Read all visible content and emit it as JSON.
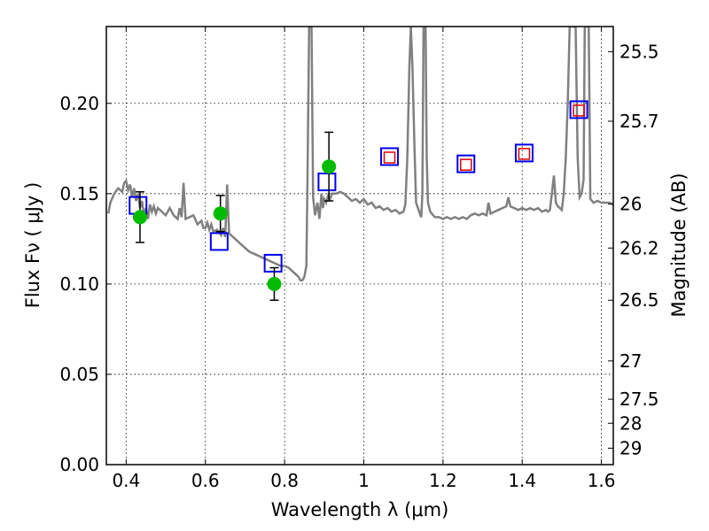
{
  "chart_data": {
    "type": "scatter",
    "xlabel": "Wavelength  λ (μm)",
    "ylabel": "Flux  Fν  ( μJy )",
    "y2label": "Magnitude (AB)",
    "xlim": [
      0.35,
      1.63
    ],
    "ylim": [
      0.0,
      0.2425
    ],
    "xticks": [
      0.4,
      0.6,
      0.8,
      1.0,
      1.2,
      1.4,
      1.6
    ],
    "xtick_labels": [
      "0.4",
      "0.6",
      "0.8",
      "1",
      "1.2",
      "1.4",
      "1.6"
    ],
    "yticks": [
      0.0,
      0.05,
      0.1,
      0.15,
      0.2
    ],
    "ytick_labels": [
      "0.00",
      "0.05",
      "0.10",
      "0.15",
      "0.20"
    ],
    "mag_ticks": [
      {
        "label": "25.5",
        "flux": 0.2286
      },
      {
        "label": "25.7",
        "flux": 0.1901
      },
      {
        "label": "26",
        "flux": 0.1442
      },
      {
        "label": "26.2",
        "flux": 0.1199
      },
      {
        "label": "26.5",
        "flux": 0.091
      },
      {
        "label": "27",
        "flux": 0.0574
      },
      {
        "label": "27.5",
        "flux": 0.0362
      },
      {
        "label": "28",
        "flux": 0.0229
      },
      {
        "label": "29",
        "flux": 0.0091
      }
    ],
    "grid": true,
    "colors": {
      "spectrum": "#808080",
      "observed": "#00bb00",
      "model_box": "#0000ee",
      "predicted_box": "#dd0000",
      "errorbar": "#000000"
    },
    "spectrum": [
      [
        0.355,
        0.139
      ],
      [
        0.36,
        0.145
      ],
      [
        0.37,
        0.15
      ],
      [
        0.38,
        0.153
      ],
      [
        0.39,
        0.151
      ],
      [
        0.395,
        0.156
      ],
      [
        0.4,
        0.157
      ],
      [
        0.405,
        0.152
      ],
      [
        0.41,
        0.155
      ],
      [
        0.415,
        0.148
      ],
      [
        0.42,
        0.153
      ],
      [
        0.425,
        0.146
      ],
      [
        0.43,
        0.15
      ],
      [
        0.435,
        0.142
      ],
      [
        0.44,
        0.146
      ],
      [
        0.445,
        0.138
      ],
      [
        0.45,
        0.142
      ],
      [
        0.455,
        0.136
      ],
      [
        0.46,
        0.144
      ],
      [
        0.465,
        0.14
      ],
      [
        0.47,
        0.143
      ],
      [
        0.475,
        0.139
      ],
      [
        0.48,
        0.142
      ],
      [
        0.49,
        0.14
      ],
      [
        0.5,
        0.138
      ],
      [
        0.51,
        0.142
      ],
      [
        0.52,
        0.138
      ],
      [
        0.53,
        0.136
      ],
      [
        0.535,
        0.142
      ],
      [
        0.54,
        0.137
      ],
      [
        0.545,
        0.156
      ],
      [
        0.55,
        0.136
      ],
      [
        0.56,
        0.137
      ],
      [
        0.57,
        0.138
      ],
      [
        0.58,
        0.133
      ],
      [
        0.59,
        0.135
      ],
      [
        0.595,
        0.131
      ],
      [
        0.6,
        0.131
      ],
      [
        0.605,
        0.134
      ],
      [
        0.61,
        0.13
      ],
      [
        0.615,
        0.133
      ],
      [
        0.62,
        0.129
      ],
      [
        0.63,
        0.13
      ],
      [
        0.64,
        0.127
      ],
      [
        0.645,
        0.131
      ],
      [
        0.65,
        0.126
      ],
      [
        0.655,
        0.155
      ],
      [
        0.66,
        0.128
      ],
      [
        0.67,
        0.126
      ],
      [
        0.68,
        0.124
      ],
      [
        0.69,
        0.122
      ],
      [
        0.7,
        0.12
      ],
      [
        0.71,
        0.118
      ],
      [
        0.72,
        0.117
      ],
      [
        0.73,
        0.116
      ],
      [
        0.74,
        0.115
      ],
      [
        0.75,
        0.114
      ],
      [
        0.76,
        0.113
      ],
      [
        0.77,
        0.112
      ],
      [
        0.78,
        0.111
      ],
      [
        0.79,
        0.11
      ],
      [
        0.8,
        0.11
      ],
      [
        0.81,
        0.109
      ],
      [
        0.815,
        0.108
      ],
      [
        0.82,
        0.107
      ],
      [
        0.825,
        0.106
      ],
      [
        0.83,
        0.105
      ],
      [
        0.835,
        0.104
      ],
      [
        0.84,
        0.102
      ],
      [
        0.845,
        0.102
      ],
      [
        0.85,
        0.104
      ],
      [
        0.855,
        0.11
      ],
      [
        0.858,
        0.16
      ],
      [
        0.862,
        0.2425
      ],
      [
        0.868,
        0.2425
      ],
      [
        0.872,
        0.148
      ],
      [
        0.877,
        0.138
      ],
      [
        0.883,
        0.145
      ],
      [
        0.888,
        0.136
      ],
      [
        0.893,
        0.15
      ],
      [
        0.897,
        0.142
      ],
      [
        0.9,
        0.147
      ],
      [
        0.905,
        0.145
      ],
      [
        0.91,
        0.149
      ],
      [
        0.915,
        0.147
      ],
      [
        0.92,
        0.15
      ],
      [
        0.93,
        0.15
      ],
      [
        0.94,
        0.151
      ],
      [
        0.95,
        0.15
      ],
      [
        0.96,
        0.148
      ],
      [
        0.97,
        0.146
      ],
      [
        0.98,
        0.147
      ],
      [
        0.99,
        0.145
      ],
      [
        1.0,
        0.147
      ],
      [
        1.01,
        0.144
      ],
      [
        1.02,
        0.145
      ],
      [
        1.03,
        0.142
      ],
      [
        1.04,
        0.143
      ],
      [
        1.05,
        0.141
      ],
      [
        1.06,
        0.142
      ],
      [
        1.07,
        0.14
      ],
      [
        1.08,
        0.141
      ],
      [
        1.09,
        0.139
      ],
      [
        1.1,
        0.14
      ],
      [
        1.105,
        0.144
      ],
      [
        1.11,
        0.17
      ],
      [
        1.115,
        0.22
      ],
      [
        1.119,
        0.2425
      ],
      [
        1.123,
        0.22
      ],
      [
        1.128,
        0.175
      ],
      [
        1.132,
        0.145
      ],
      [
        1.14,
        0.14
      ],
      [
        1.145,
        0.137
      ],
      [
        1.148,
        0.15
      ],
      [
        1.151,
        0.2425
      ],
      [
        1.156,
        0.2425
      ],
      [
        1.159,
        0.17
      ],
      [
        1.162,
        0.145
      ],
      [
        1.168,
        0.14
      ],
      [
        1.175,
        0.138
      ],
      [
        1.18,
        0.137
      ],
      [
        1.19,
        0.137
      ],
      [
        1.2,
        0.136
      ],
      [
        1.21,
        0.137
      ],
      [
        1.22,
        0.136
      ],
      [
        1.23,
        0.137
      ],
      [
        1.24,
        0.136
      ],
      [
        1.25,
        0.137
      ],
      [
        1.26,
        0.136
      ],
      [
        1.27,
        0.138
      ],
      [
        1.28,
        0.139
      ],
      [
        1.29,
        0.138
      ],
      [
        1.3,
        0.139
      ],
      [
        1.31,
        0.138
      ],
      [
        1.315,
        0.145
      ],
      [
        1.32,
        0.139
      ],
      [
        1.33,
        0.14
      ],
      [
        1.34,
        0.141
      ],
      [
        1.35,
        0.142
      ],
      [
        1.36,
        0.143
      ],
      [
        1.365,
        0.148
      ],
      [
        1.37,
        0.143
      ],
      [
        1.38,
        0.142
      ],
      [
        1.39,
        0.141
      ],
      [
        1.4,
        0.142
      ],
      [
        1.41,
        0.141
      ],
      [
        1.42,
        0.142
      ],
      [
        1.43,
        0.141
      ],
      [
        1.44,
        0.142
      ],
      [
        1.45,
        0.14
      ],
      [
        1.46,
        0.141
      ],
      [
        1.465,
        0.14
      ],
      [
        1.47,
        0.141
      ],
      [
        1.475,
        0.15
      ],
      [
        1.48,
        0.16
      ],
      [
        1.485,
        0.145
      ],
      [
        1.49,
        0.143
      ],
      [
        1.495,
        0.142
      ],
      [
        1.5,
        0.141
      ],
      [
        1.505,
        0.15
      ],
      [
        1.51,
        0.17
      ],
      [
        1.515,
        0.2
      ],
      [
        1.52,
        0.2425
      ],
      [
        1.535,
        0.2425
      ],
      [
        1.54,
        0.17
      ],
      [
        1.545,
        0.148
      ],
      [
        1.55,
        0.15
      ],
      [
        1.555,
        0.158
      ],
      [
        1.558,
        0.2425
      ],
      [
        1.568,
        0.2425
      ],
      [
        1.572,
        0.147
      ],
      [
        1.58,
        0.145
      ],
      [
        1.59,
        0.146
      ],
      [
        1.6,
        0.145
      ],
      [
        1.61,
        0.145
      ],
      [
        1.62,
        0.145
      ],
      [
        1.63,
        0.144
      ]
    ],
    "observed": [
      {
        "x": 0.435,
        "y": 0.137,
        "yerr_low": 0.014,
        "yerr_high": 0.014
      },
      {
        "x": 0.638,
        "y": 0.139,
        "yerr_low": 0.01,
        "yerr_high": 0.01
      },
      {
        "x": 0.774,
        "y": 0.1,
        "yerr_low": 0.009,
        "yerr_high": 0.009
      },
      {
        "x": 0.912,
        "y": 0.165,
        "yerr_low": 0.019,
        "yerr_high": 0.019
      }
    ],
    "model_boxes": [
      {
        "x": 0.43,
        "y": 0.1435
      },
      {
        "x": 0.635,
        "y": 0.1235
      },
      {
        "x": 0.771,
        "y": 0.1115
      },
      {
        "x": 0.907,
        "y": 0.1565
      },
      {
        "x": 1.065,
        "y": 0.1705
      },
      {
        "x": 1.258,
        "y": 0.1665
      },
      {
        "x": 1.405,
        "y": 0.1725
      },
      {
        "x": 1.543,
        "y": 0.1965
      }
    ],
    "predicted": [
      {
        "x": 1.065,
        "y": 0.17
      },
      {
        "x": 1.258,
        "y": 0.166
      },
      {
        "x": 1.405,
        "y": 0.172
      },
      {
        "x": 1.543,
        "y": 0.196
      }
    ]
  }
}
